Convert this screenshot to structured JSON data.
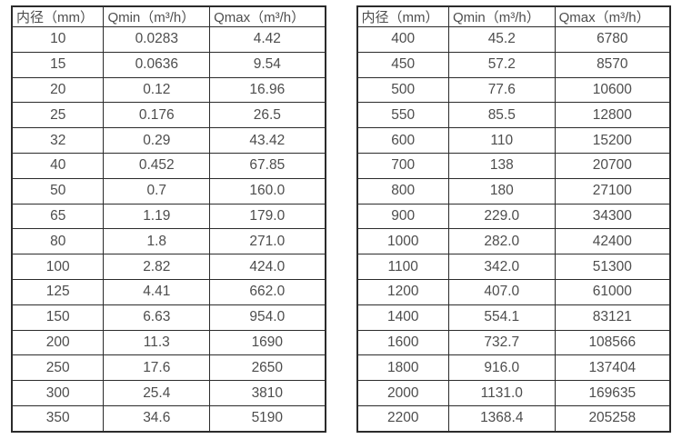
{
  "colors": {
    "border": "#2b2b2b",
    "text": "#4d4d4d",
    "background": "#ffffff"
  },
  "tables": [
    {
      "name": "flow-table-small-diameters",
      "headers": [
        "内径（mm）",
        "Qmin（m³/h）",
        "Qmax（m³/h）"
      ],
      "rows": [
        [
          "10",
          "0.0283",
          "4.42"
        ],
        [
          "15",
          "0.0636",
          "9.54"
        ],
        [
          "20",
          "0.12",
          "16.96"
        ],
        [
          "25",
          "0.176",
          "26.5"
        ],
        [
          "32",
          "0.29",
          "43.42"
        ],
        [
          "40",
          "0.452",
          "67.85"
        ],
        [
          "50",
          "0.7",
          "160.0"
        ],
        [
          "65",
          "1.19",
          "179.0"
        ],
        [
          "80",
          "1.8",
          "271.0"
        ],
        [
          "100",
          "2.82",
          "424.0"
        ],
        [
          "125",
          "4.41",
          "662.0"
        ],
        [
          "150",
          "6.63",
          "954.0"
        ],
        [
          "200",
          "11.3",
          "1690"
        ],
        [
          "250",
          "17.6",
          "2650"
        ],
        [
          "300",
          "25.4",
          "3810"
        ],
        [
          "350",
          "34.6",
          "5190"
        ]
      ]
    },
    {
      "name": "flow-table-large-diameters",
      "headers": [
        "内径（mm）",
        "Qmin（m³/h）",
        "Qmax（m³/h）"
      ],
      "rows": [
        [
          "400",
          "45.2",
          "6780"
        ],
        [
          "450",
          "57.2",
          "8570"
        ],
        [
          "500",
          "77.6",
          "10600"
        ],
        [
          "550",
          "85.5",
          "12800"
        ],
        [
          "600",
          "110",
          "15200"
        ],
        [
          "700",
          "138",
          "20700"
        ],
        [
          "800",
          "180",
          "27100"
        ],
        [
          "900",
          "229.0",
          "34300"
        ],
        [
          "1000",
          "282.0",
          "42400"
        ],
        [
          "1100",
          "342.0",
          "51300"
        ],
        [
          "1200",
          "407.0",
          "61000"
        ],
        [
          "1400",
          "554.1",
          "83121"
        ],
        [
          "1600",
          "732.7",
          "108566"
        ],
        [
          "1800",
          "916.0",
          "137404"
        ],
        [
          "2000",
          "1131.0",
          "169635"
        ],
        [
          "2200",
          "1368.4",
          "205258"
        ]
      ]
    }
  ]
}
